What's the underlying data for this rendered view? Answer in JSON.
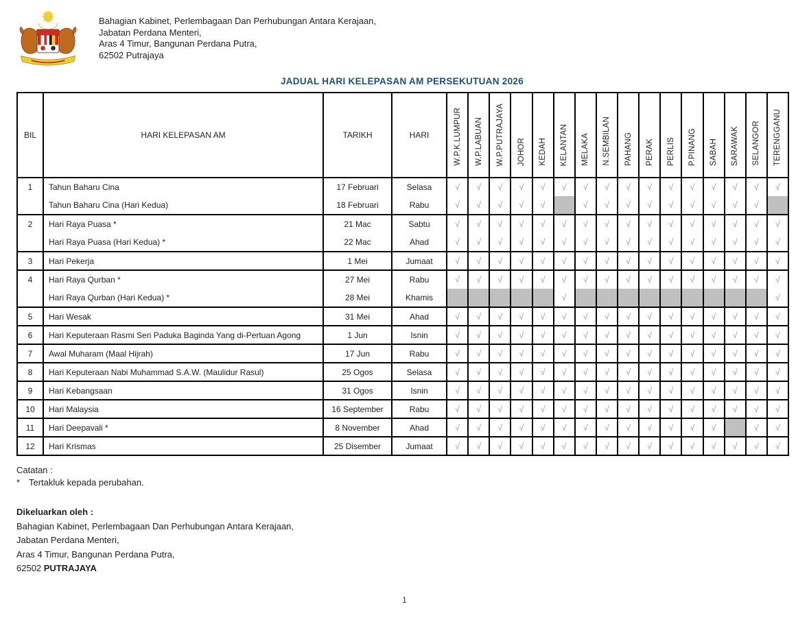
{
  "header": {
    "logo": "malaysia-coat-of-arms",
    "address_lines": [
      "Bahagian Kabinet, Perlembagaan Dan Perhubungan Antara  Kerajaan,",
      "Jabatan Perdana Menteri,",
      "Aras 4 Timur, Bangunan Perdana Putra,",
      "62502 Putrajaya"
    ],
    "title": "JADUAL HARI KELEPASAN AM PERSEKUTUAN 2026"
  },
  "table": {
    "columns": {
      "bil": "BIL",
      "holiday": "HARI KELEPASAN AM",
      "date": "TARIKH",
      "day": "HARI"
    },
    "states": [
      "W.P.K.LUMPUR",
      "W.P.LABUAN",
      "W.P.PUTRAJAYA",
      "JOHOR",
      "KEDAH",
      "KELANTAN",
      "MELAKA",
      "N.SEMBILAN",
      "PAHANG",
      "PERAK",
      "PERLIS",
      "P.PINANG",
      "SABAH",
      "SARAWAK",
      "SELANGOR",
      "TERENGGANU"
    ],
    "check_symbol": "√",
    "legend": {
      "c": "observed",
      "g": "not-observed-shaded"
    },
    "groups": [
      {
        "bil": "1",
        "rows": [
          {
            "holiday": "Tahun Baharu Cina",
            "date": "17 Februari",
            "day": "Selasa",
            "checks": "cccccccccccccccc"
          },
          {
            "holiday": "Tahun Baharu Cina (Hari Kedua)",
            "date": "18 Februari",
            "day": "Rabu",
            "checks": "cccccgcccccccccg"
          }
        ]
      },
      {
        "bil": "2",
        "rows": [
          {
            "holiday": "Hari Raya Puasa *",
            "date": "21 Mac",
            "day": "Sabtu",
            "checks": "cccccccccccccccc"
          },
          {
            "holiday": "Hari Raya Puasa (Hari Kedua) *",
            "date": "22 Mac",
            "day": "Ahad",
            "checks": "cccccccccccccccc"
          }
        ]
      },
      {
        "bil": "3",
        "rows": [
          {
            "holiday": "Hari Pekerja",
            "date": "1 Mei",
            "day": "Jumaat",
            "checks": "cccccccccccccccc"
          }
        ]
      },
      {
        "bil": "4",
        "rows": [
          {
            "holiday": "Hari Raya Qurban *",
            "date": "27 Mei",
            "day": "Rabu",
            "checks": "cccccccccccccccc"
          },
          {
            "holiday": "Hari Raya Qurban (Hari Kedua) *",
            "date": "28 Mei",
            "day": "Khamis",
            "checks": "gggggcgggggggggc"
          }
        ]
      },
      {
        "bil": "5",
        "rows": [
          {
            "holiday": "Hari Wesak",
            "date": "31 Mei",
            "day": "Ahad",
            "checks": "cccccccccccccccc"
          }
        ]
      },
      {
        "bil": "6",
        "rows": [
          {
            "holiday": "Hari Keputeraan Rasmi Seri Paduka Baginda Yang di-Pertuan Agong",
            "date": "1 Jun",
            "day": "Isnin",
            "checks": "cccccccccccccccc"
          }
        ]
      },
      {
        "bil": "7",
        "rows": [
          {
            "holiday": "Awal Muharam (Maal Hijrah)",
            "date": "17 Jun",
            "day": "Rabu",
            "checks": "cccccccccccccccc"
          }
        ]
      },
      {
        "bil": "8",
        "rows": [
          {
            "holiday": "Hari Keputeraan Nabi Muhammad S.A.W. (Maulidur Rasul)",
            "date": "25 Ogos",
            "day": "Selasa",
            "checks": "cccccccccccccccc"
          }
        ]
      },
      {
        "bil": "9",
        "rows": [
          {
            "holiday": "Hari Kebangsaan",
            "date": "31 Ogos",
            "day": "Isnin",
            "checks": "cccccccccccccccc"
          }
        ]
      },
      {
        "bil": "10",
        "rows": [
          {
            "holiday": "Hari Malaysia",
            "date": "16 September",
            "day": "Rabu",
            "checks": "cccccccccccccccc"
          }
        ]
      },
      {
        "bil": "11",
        "rows": [
          {
            "holiday": "Hari Deepavali *",
            "date": "8 November",
            "day": "Ahad",
            "checks": "cccccccccccccgcc"
          }
        ]
      },
      {
        "bil": "12",
        "rows": [
          {
            "holiday": "Hari Krismas",
            "date": "25 Disember",
            "day": "Jumaat",
            "checks": "cccccccccccccccc"
          }
        ]
      }
    ]
  },
  "footer": {
    "notes_label": "Catatan :",
    "note_symbol": "*",
    "note_text": "Tertakluk kepada perubahan.",
    "issued_label": "Dikeluarkan oleh :",
    "issued_lines": [
      "Bahagian Kabinet, Perlembagaan Dan Perhubungan Antara Kerajaan,",
      "Jabatan Perdana Menteri,",
      "Aras 4 Timur, Bangunan Perdana Putra,"
    ],
    "postcode": "62502 ",
    "city": "PUTRAJAYA"
  },
  "page_number": "1",
  "colors": {
    "title": "#1f4e79",
    "check": "#b08f8f",
    "shaded": "#c0c0c0",
    "border": "#000000"
  }
}
